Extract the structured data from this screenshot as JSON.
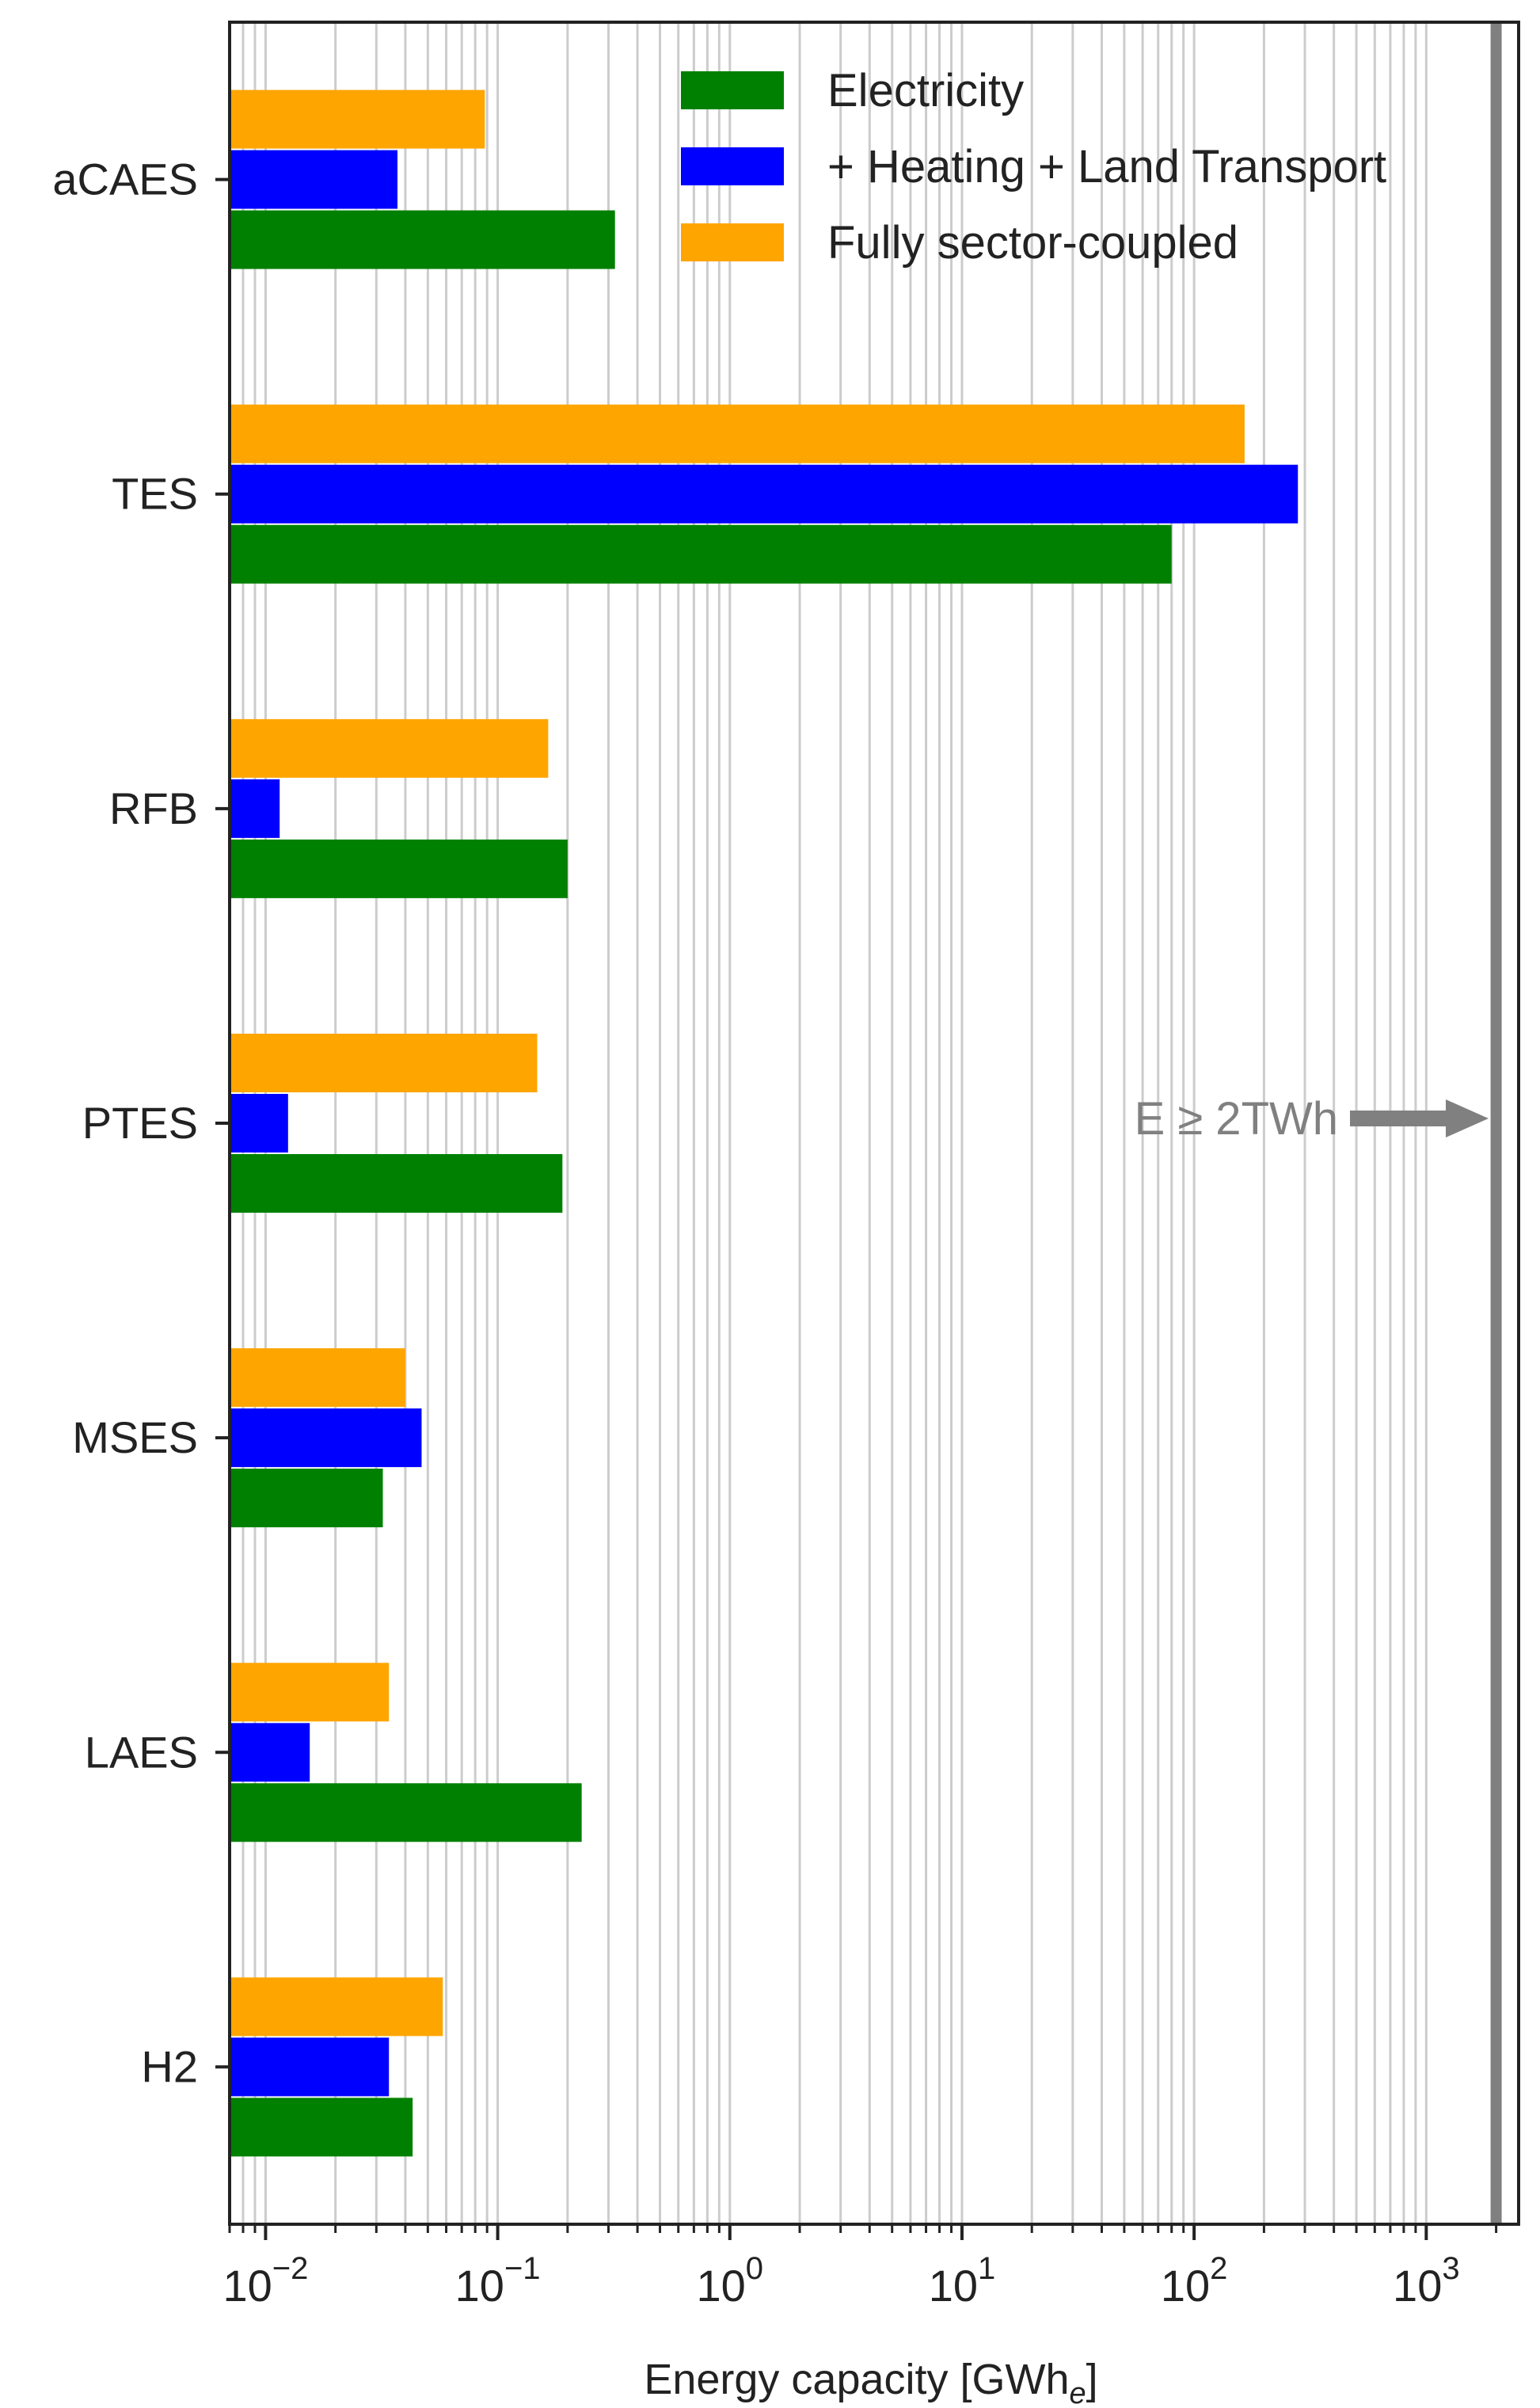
{
  "chart_data": {
    "type": "bar",
    "orientation": "horizontal",
    "xscale": "log",
    "xlim": [
      0.007,
      2500
    ],
    "grid": true,
    "legend_position": "top-right",
    "xlabel_main": "Energy capacity [GWh",
    "xlabel_sub": "e",
    "xlabel_close": "]",
    "categories": [
      "aCAES",
      "TES",
      "RFB",
      "PTES",
      "MSES",
      "LAES",
      "H2"
    ],
    "series": [
      {
        "name": "Electricity",
        "color": "#008000",
        "values": [
          0.32,
          80,
          0.2,
          0.19,
          0.032,
          0.23,
          0.043
        ]
      },
      {
        "name": "+ Heating + Land Transport",
        "color": "#0000ff",
        "values": [
          0.037,
          280,
          0.0115,
          0.0125,
          0.047,
          0.0155,
          0.034
        ]
      },
      {
        "name": "Fully sector-coupled",
        "color": "#ffa500",
        "values": [
          0.088,
          165,
          0.165,
          0.148,
          0.04,
          0.034,
          0.058
        ]
      }
    ],
    "xticks": [
      {
        "value": 0.01,
        "base": "10",
        "exp": "−2"
      },
      {
        "value": 0.1,
        "base": "10",
        "exp": "−1"
      },
      {
        "value": 1,
        "base": "10",
        "exp": "0"
      },
      {
        "value": 10,
        "base": "10",
        "exp": "1"
      },
      {
        "value": 100,
        "base": "10",
        "exp": "2"
      },
      {
        "value": 1000,
        "base": "10",
        "exp": "3"
      }
    ],
    "annotation": {
      "text": "E  ≥  2TWh",
      "threshold": 2000,
      "color": "#808080"
    }
  }
}
